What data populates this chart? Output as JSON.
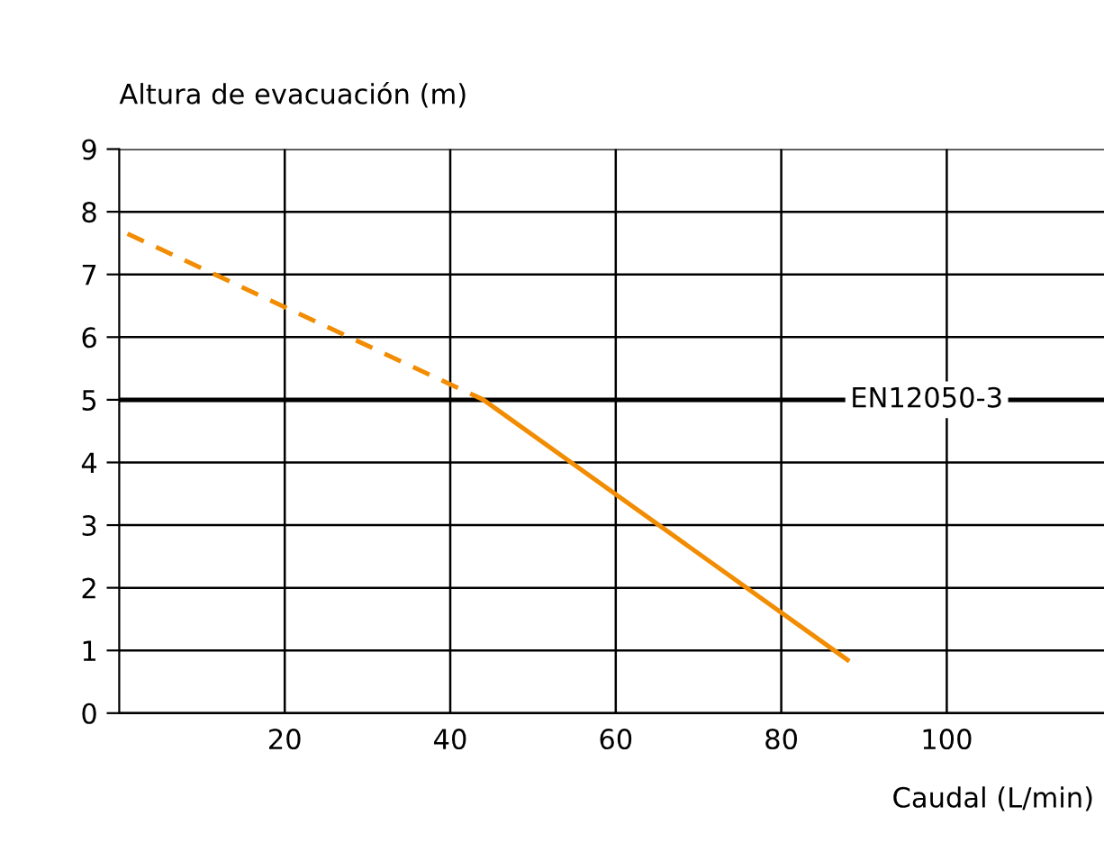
{
  "chart_data": {
    "type": "line",
    "xlabel": "Caudal (L/min)",
    "ylabel": "Altura de evacuación (m)",
    "series": [
      {
        "x": [
          1,
          44
        ],
        "values": [
          7.65,
          5.0
        ],
        "color": "#f28c00",
        "line_style": "dashed"
      },
      {
        "x": [
          44,
          88
        ],
        "values": [
          5.0,
          0.85
        ],
        "color": "#f28c00",
        "line_style": "solid"
      }
    ],
    "xlim": [
      0,
      119
    ],
    "xticks": [
      20,
      40,
      60,
      80,
      100
    ],
    "ylim": [
      0,
      9
    ],
    "yticks": [
      0,
      1,
      2,
      3,
      4,
      5,
      6,
      7,
      8,
      9
    ],
    "ref_lines": [
      {
        "axis": "y",
        "value": 5,
        "label": "EN12050-3",
        "color": "#000000"
      }
    ],
    "grid": true,
    "marker": "none"
  }
}
